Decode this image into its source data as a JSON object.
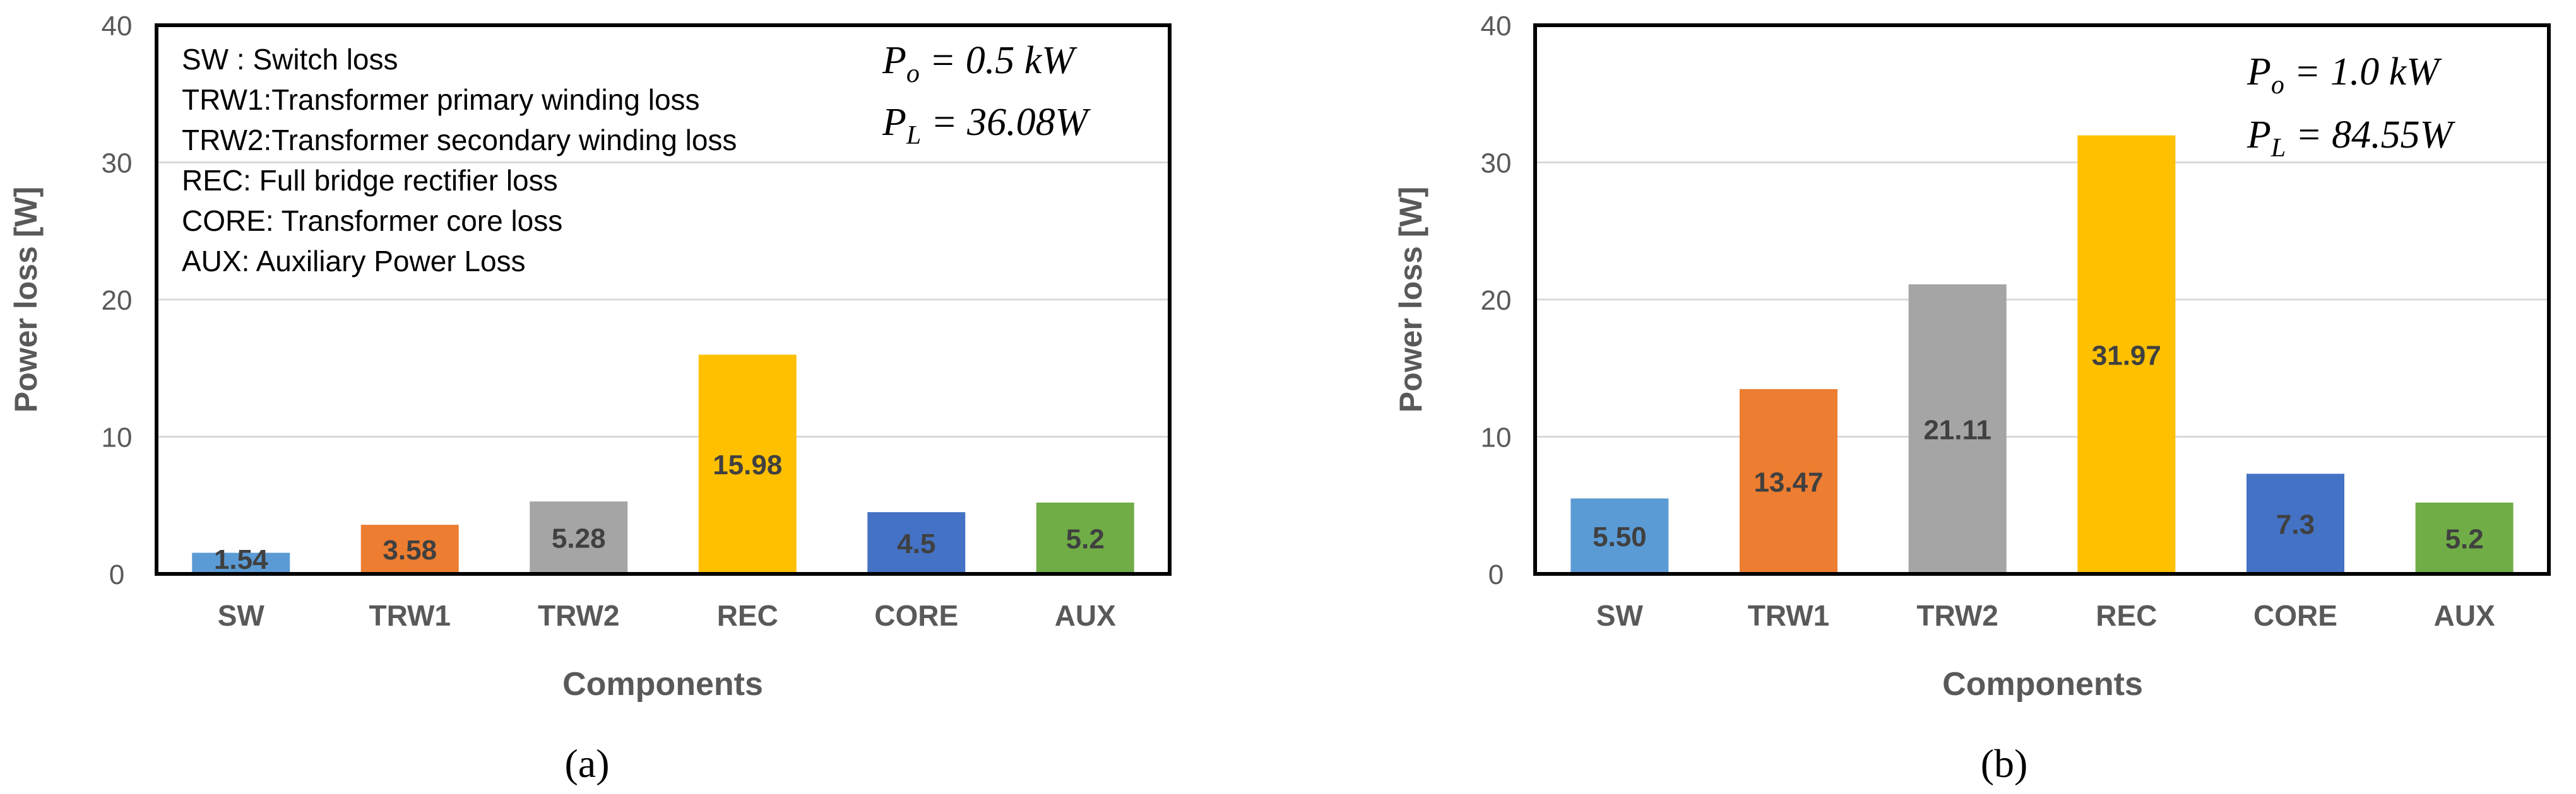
{
  "chart_data": [
    {
      "type": "bar",
      "panel_label": "(a)",
      "ylabel": "Power loss [W]",
      "xlabel": "Components",
      "ylim": [
        0,
        40
      ],
      "yticks": [
        0,
        10,
        20,
        30,
        40
      ],
      "grid": true,
      "categories": [
        "SW",
        "TRW1",
        "TRW2",
        "REC",
        "CORE",
        "AUX"
      ],
      "values": [
        1.54,
        3.58,
        5.28,
        15.98,
        4.5,
        5.2
      ],
      "data_labels": [
        "1.54",
        "3.58",
        "5.28",
        "15.98",
        "4.5",
        "5.2"
      ],
      "colors": [
        "#5B9BD5",
        "#ED7D31",
        "#A5A5A5",
        "#FFC000",
        "#4472C4",
        "#70AD47"
      ],
      "legend": [
        "SW : Switch loss",
        "TRW1:Transformer primary winding loss",
        "TRW2:Transformer secondary winding loss",
        "REC: Full bridge rectifier loss",
        "CORE: Transformer core loss",
        "AUX: Auxiliary Power Loss"
      ],
      "annotations": {
        "po_symbol": "P",
        "po_sub": "o",
        "po_value": " = 0.5 kW",
        "pl_symbol": "P",
        "pl_sub": "L",
        "pl_value": " = 36.08W"
      }
    },
    {
      "type": "bar",
      "panel_label": "(b)",
      "ylabel": "Power loss [W]",
      "xlabel": "Components",
      "ylim": [
        0,
        40
      ],
      "yticks": [
        0,
        10,
        20,
        30,
        40
      ],
      "grid": true,
      "categories": [
        "SW",
        "TRW1",
        "TRW2",
        "REC",
        "CORE",
        "AUX"
      ],
      "values": [
        5.5,
        13.47,
        21.11,
        31.97,
        7.3,
        5.2
      ],
      "data_labels": [
        "5.50",
        "13.47",
        "21.11",
        "31.97",
        "7.3",
        "5.2"
      ],
      "colors": [
        "#5B9BD5",
        "#ED7D31",
        "#A5A5A5",
        "#FFC000",
        "#4472C4",
        "#70AD47"
      ],
      "annotations": {
        "po_symbol": "P",
        "po_sub": "o",
        "po_value": " = 1.0 kW",
        "pl_symbol": "P",
        "pl_sub": "L",
        "pl_value": " = 84.55W"
      }
    }
  ]
}
